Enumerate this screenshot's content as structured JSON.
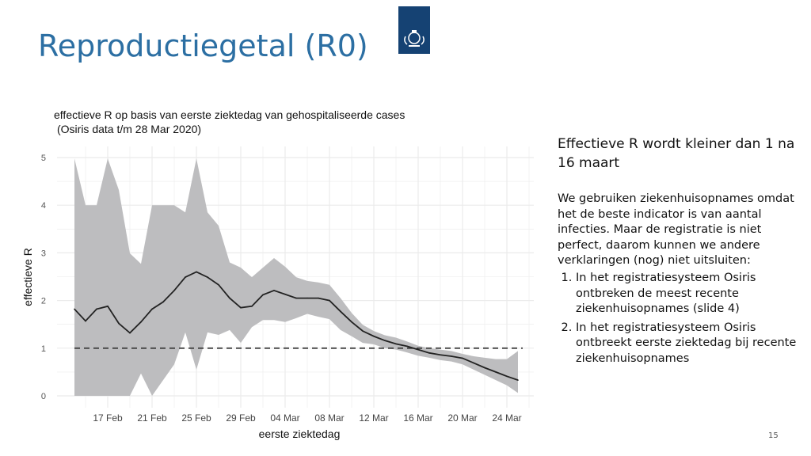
{
  "slide": {
    "title": "Reproductiegetal (R0)",
    "page_number": "15",
    "logo": "Rijksoverheid crest logo"
  },
  "right_text": {
    "heading": "Effectieve R wordt kleiner dan 1 na 16 maart",
    "body": "We gebruiken ziekenhuisopnames omdat het de beste indicator is van aantal infecties. Maar de registratie is niet perfect, daarom kunnen we andere verklaringen (nog) niet uitsluiten:",
    "items": [
      "In het registratiesysteem Osiris ontbreken de meest recente ziekenhuisopnames (slide 4)",
      "In het registratiesysteem Osiris ontbreekt eerste ziektedag bij recente ziekenhuisopnames"
    ]
  },
  "chart_data": {
    "type": "line",
    "title": "effectieve R op basis van eerste ziektedag van gehospitaliseerde cases",
    "subtitle": "(Osiris data t/m 28 Mar 2020)",
    "xlabel": "eerste ziektedag",
    "ylabel": "effectieve R",
    "ylim": [
      0,
      5
    ],
    "yticks": [
      "0",
      "1",
      "2",
      "3",
      "4",
      "5"
    ],
    "xtick_labels": [
      "17 Feb",
      "21 Feb",
      "25 Feb",
      "29 Feb",
      "04 Mar",
      "08 Mar",
      "12 Mar",
      "16 Mar",
      "20 Mar",
      "24 Mar"
    ],
    "grid": true,
    "reference_line": {
      "y": 1,
      "style": "dashed"
    },
    "x": [
      "2020-02-14",
      "2020-02-15",
      "2020-02-16",
      "2020-02-17",
      "2020-02-18",
      "2020-02-19",
      "2020-02-20",
      "2020-02-21",
      "2020-02-22",
      "2020-02-23",
      "2020-02-24",
      "2020-02-25",
      "2020-02-26",
      "2020-02-27",
      "2020-02-28",
      "2020-02-29",
      "2020-03-01",
      "2020-03-02",
      "2020-03-03",
      "2020-03-04",
      "2020-03-05",
      "2020-03-06",
      "2020-03-07",
      "2020-03-08",
      "2020-03-09",
      "2020-03-10",
      "2020-03-11",
      "2020-03-12",
      "2020-03-13",
      "2020-03-14",
      "2020-03-15",
      "2020-03-16",
      "2020-03-17",
      "2020-03-18",
      "2020-03-19",
      "2020-03-20",
      "2020-03-21",
      "2020-03-22",
      "2020-03-23",
      "2020-03-24",
      "2020-03-25"
    ],
    "series": [
      {
        "values": [
          1.82,
          1.57,
          1.82,
          1.88,
          1.52,
          1.32,
          1.55,
          1.82,
          1.97,
          2.21,
          2.49,
          2.6,
          2.49,
          2.33,
          2.05,
          1.85,
          1.88,
          2.12,
          2.21,
          2.13,
          2.05,
          2.05,
          2.05,
          2.0,
          1.77,
          1.55,
          1.36,
          1.25,
          1.16,
          1.09,
          1.04,
          0.97,
          0.9,
          0.86,
          0.83,
          0.79,
          0.69,
          0.59,
          0.5,
          0.41,
          0.33
        ],
        "upper": [
          4.98,
          4.0,
          4.0,
          4.98,
          4.32,
          2.99,
          2.77,
          4.0,
          4.0,
          4.0,
          3.85,
          4.98,
          3.85,
          3.57,
          2.8,
          2.69,
          2.49,
          2.69,
          2.89,
          2.71,
          2.49,
          2.41,
          2.38,
          2.33,
          2.05,
          1.74,
          1.49,
          1.36,
          1.27,
          1.22,
          1.14,
          1.05,
          1.0,
          0.97,
          0.94,
          0.88,
          0.83,
          0.8,
          0.77,
          0.77,
          0.94
        ],
        "lower": [
          0,
          0,
          0,
          0,
          0,
          0,
          0.47,
          0,
          0.33,
          0.66,
          1.33,
          0.55,
          1.33,
          1.28,
          1.38,
          1.11,
          1.44,
          1.59,
          1.59,
          1.55,
          1.63,
          1.72,
          1.66,
          1.61,
          1.38,
          1.25,
          1.11,
          1.08,
          1.0,
          0.97,
          0.91,
          0.84,
          0.8,
          0.75,
          0.72,
          0.66,
          0.55,
          0.44,
          0.33,
          0.22,
          0.06
        ]
      }
    ],
    "colors": {
      "line": "#222222",
      "band": "#bdbdbf",
      "grid": "#ebebeb",
      "title": "#2c6fa3"
    }
  }
}
